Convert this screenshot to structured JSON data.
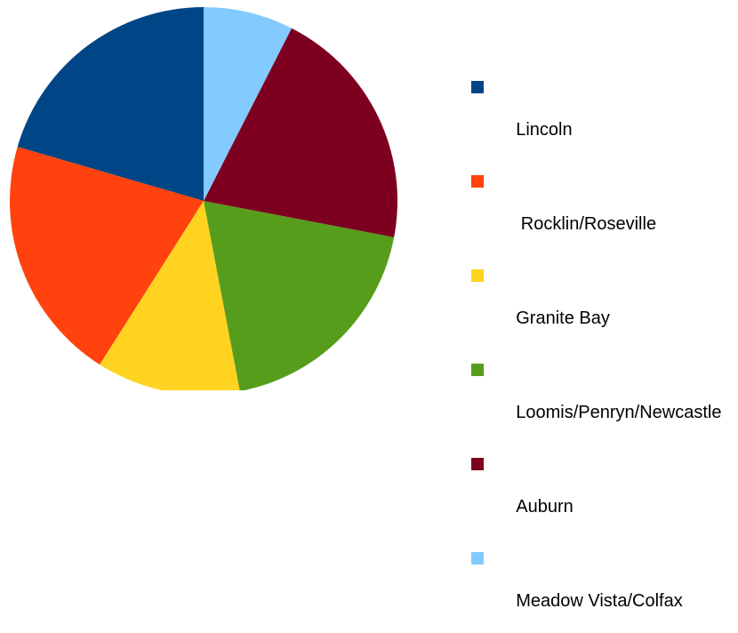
{
  "chart_data": {
    "type": "pie",
    "legend_position": "right",
    "slices": [
      {
        "label": "Lincoln",
        "value": 20.5,
        "color": "#004586"
      },
      {
        "label": " Rocklin/Roseville",
        "value": 20.5,
        "color": "#ff420e"
      },
      {
        "label": "Granite Bay",
        "value": 12.0,
        "color": "#ffd320"
      },
      {
        "label": "Loomis/Penryn/Newcastle",
        "value": 19.0,
        "color": "#579d1c"
      },
      {
        "label": "Auburn",
        "value": 20.5,
        "color": "#7e0021"
      },
      {
        "label": "Meadow Vista/Colfax",
        "value": 7.5,
        "color": "#83caff"
      }
    ]
  }
}
